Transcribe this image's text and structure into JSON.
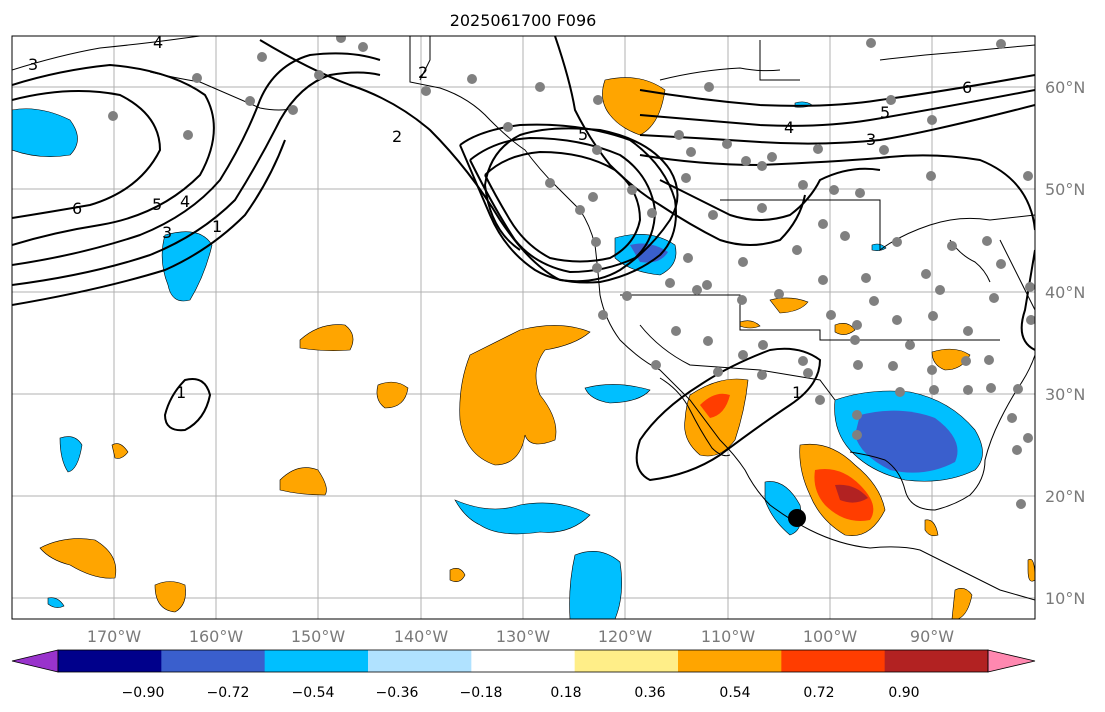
{
  "title": "2025061700 F096",
  "lat_labels": [
    "60°N",
    "50°N",
    "40°N",
    "30°N",
    "20°N",
    "10°N"
  ],
  "lon_labels": [
    "170°W",
    "160°W",
    "150°W",
    "140°W",
    "130°W",
    "120°W",
    "110°W",
    "100°W",
    "90°W"
  ],
  "colorbar": {
    "ticks": [
      "−0.90",
      "−0.72",
      "−0.54",
      "−0.36",
      "−0.18",
      "0.18",
      "0.36",
      "0.54",
      "0.72",
      "0.90"
    ],
    "colors": [
      "#9933cc",
      "#00008b",
      "#3a5fcd",
      "#00bfff",
      "#b0e2ff",
      "#ffffff",
      "#ffee88",
      "#ffa500",
      "#ff3d00",
      "#b22222",
      "#ff88b0"
    ]
  },
  "contour_labels": [
    "3",
    "4",
    "2",
    "6",
    "5",
    "4",
    "3",
    "1",
    "2",
    "5",
    "6",
    "4",
    "5",
    "3",
    "1",
    "1"
  ],
  "colors": {
    "orange": "#ffa500",
    "blue": "#00bfff",
    "dark_blue": "#3a5fcd",
    "red": "#ff3d00",
    "dark_red": "#b22222",
    "station": "#808080",
    "marker": "#000000"
  }
}
